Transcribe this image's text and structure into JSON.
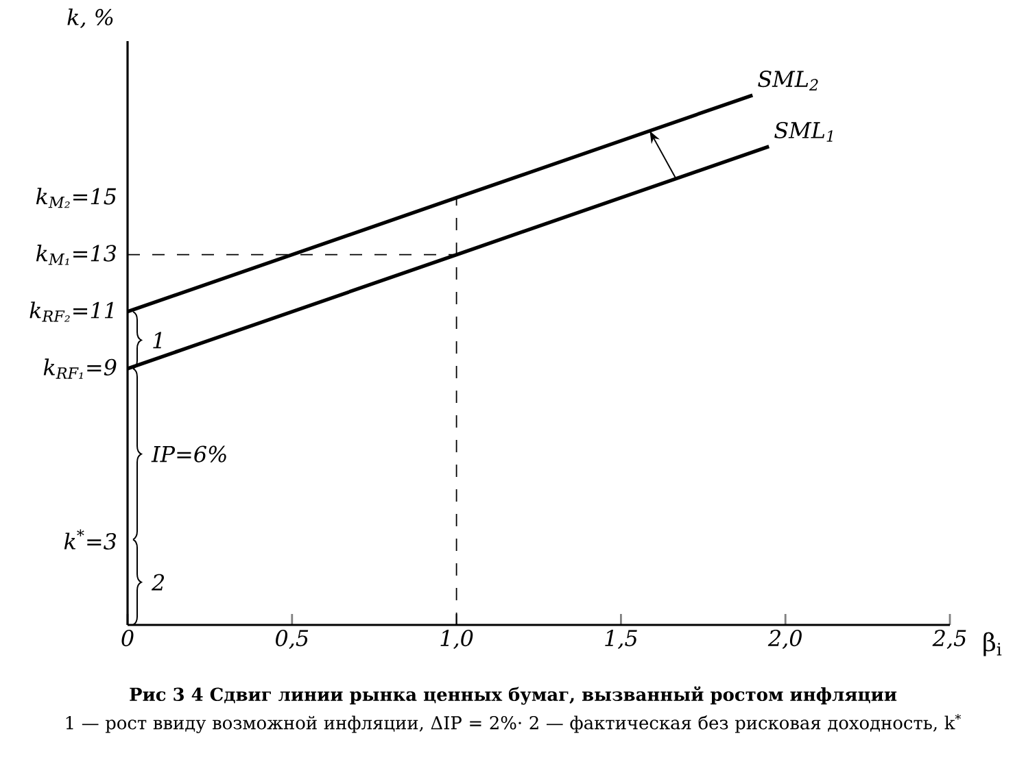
{
  "chart_data": {
    "type": "line",
    "title": "**Рис 3 4 Сдвиг линии рынка ценных бумаг, вызванный ростом инфляции**",
    "annotations": [
      "1",
      "IP=6%",
      "2",
      "1 — рост ввиду возможной инфляции, ΔIP = 2%· 2 — фактическая без рисковая доходность, k$^{*}$"
    ],
    "xlabel": "β$_{i}$",
    "ylabel": "k, %",
    "series": [
      {
        "name": "SML$_{1}$",
        "color": "#000000",
        "x": [
          0,
          1,
          1.95
        ],
        "values": [
          9,
          13,
          16.8
        ]
      },
      {
        "name": "SML$_{2}$",
        "color": "#000000",
        "x": [
          0,
          1,
          1.9
        ],
        "values": [
          11,
          15,
          18.6
        ]
      }
    ],
    "xlim": [
      0,
      2.5
    ],
    "ylim": [
      0,
      20.5
    ],
    "xticks": [
      0,
      {
        "value": 0.5,
        "label": "0,5"
      },
      {
        "value": 1,
        "label": "1,0"
      },
      {
        "value": 1.5,
        "label": "1,5"
      },
      {
        "value": 2,
        "label": "2,0"
      },
      {
        "value": 2.5,
        "label": "2,5"
      }
    ],
    "yticks": [
      {
        "value": 3,
        "label": "k$^{*}$=3"
      },
      {
        "value": 9,
        "label": "k$_{RF₁}$=9"
      },
      {
        "value": 11,
        "label": "k$_{RF₂}$=11"
      },
      {
        "value": 13,
        "label": "k$_{M₁}$=13"
      },
      {
        "value": 15,
        "label": "k$_{M₂}$=15"
      }
    ],
    "ref_lines": [
      {
        "axis": "y",
        "value": 13,
        "line_style": "dashed"
      },
      {
        "axis": "x",
        "value": 1,
        "line_style": "dashed"
      }
    ],
    "legend": false
  }
}
